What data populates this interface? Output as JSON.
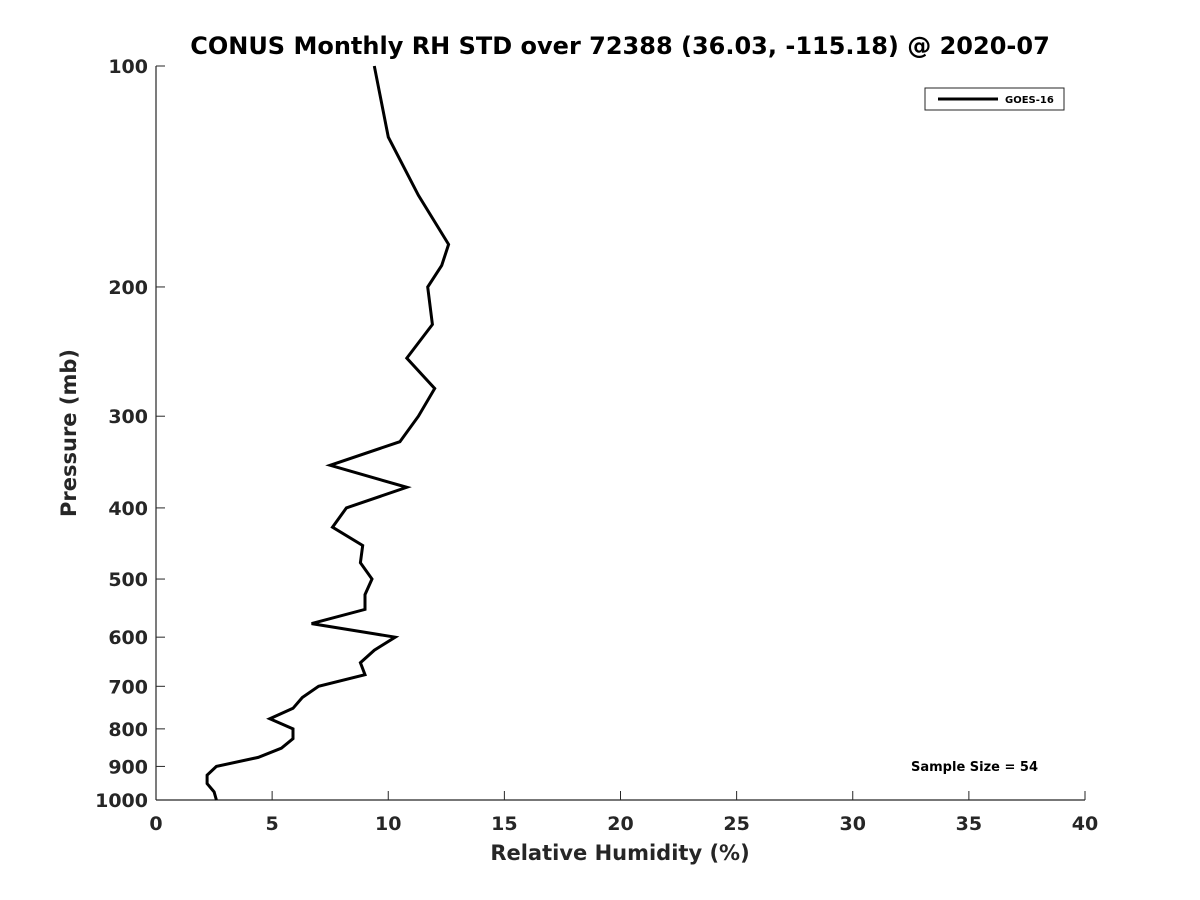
{
  "chart_data": {
    "type": "line",
    "title": "CONUS Monthly RH STD over 72388 (36.03, -115.18) @ 2020-07",
    "xlabel": "Relative Humidity (%)",
    "ylabel": "Pressure (mb)",
    "xlim": [
      0,
      40
    ],
    "ylim": [
      100,
      1000
    ],
    "y_scale": "log",
    "y_reversed": true,
    "grid": false,
    "legend_position": "top-right",
    "x_ticks": [
      "0",
      "5",
      "10",
      "15",
      "20",
      "25",
      "30",
      "35",
      "40"
    ],
    "y_ticks": [
      "100",
      "200",
      "300",
      "400",
      "500",
      "600",
      "700",
      "800",
      "900",
      "1000"
    ],
    "annotation": "Sample Size = 54",
    "series": [
      {
        "name": "GOES-16",
        "color": "#000000",
        "points": [
          {
            "x": 9.4,
            "y": 100
          },
          {
            "x": 10.0,
            "y": 125
          },
          {
            "x": 11.3,
            "y": 150
          },
          {
            "x": 12.6,
            "y": 175
          },
          {
            "x": 12.3,
            "y": 187
          },
          {
            "x": 11.7,
            "y": 200
          },
          {
            "x": 11.9,
            "y": 225
          },
          {
            "x": 10.8,
            "y": 250
          },
          {
            "x": 12.0,
            "y": 275
          },
          {
            "x": 11.3,
            "y": 300
          },
          {
            "x": 10.5,
            "y": 325
          },
          {
            "x": 7.5,
            "y": 350
          },
          {
            "x": 10.8,
            "y": 375
          },
          {
            "x": 8.2,
            "y": 400
          },
          {
            "x": 7.6,
            "y": 425
          },
          {
            "x": 8.9,
            "y": 450
          },
          {
            "x": 8.8,
            "y": 475
          },
          {
            "x": 9.3,
            "y": 500
          },
          {
            "x": 9.0,
            "y": 525
          },
          {
            "x": 9.0,
            "y": 550
          },
          {
            "x": 6.7,
            "y": 575
          },
          {
            "x": 10.3,
            "y": 600
          },
          {
            "x": 9.4,
            "y": 625
          },
          {
            "x": 8.8,
            "y": 650
          },
          {
            "x": 9.0,
            "y": 675
          },
          {
            "x": 7.0,
            "y": 700
          },
          {
            "x": 6.3,
            "y": 725
          },
          {
            "x": 5.9,
            "y": 750
          },
          {
            "x": 4.9,
            "y": 775
          },
          {
            "x": 5.9,
            "y": 800
          },
          {
            "x": 5.9,
            "y": 825
          },
          {
            "x": 5.4,
            "y": 850
          },
          {
            "x": 4.4,
            "y": 875
          },
          {
            "x": 2.6,
            "y": 900
          },
          {
            "x": 2.2,
            "y": 925
          },
          {
            "x": 2.2,
            "y": 950
          },
          {
            "x": 2.5,
            "y": 975
          },
          {
            "x": 2.6,
            "y": 1000
          }
        ]
      }
    ]
  }
}
